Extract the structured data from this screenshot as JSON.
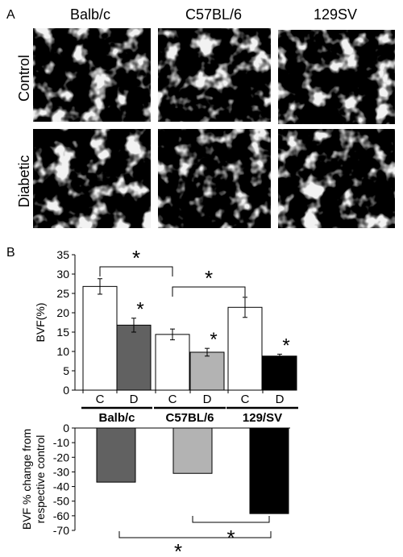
{
  "panel_a": {
    "label": "A",
    "strains": [
      "Balb/c",
      "C57BL/6",
      "129SV"
    ],
    "rows": [
      "Control",
      "Diabetic"
    ]
  },
  "panel_b": {
    "label": "B"
  },
  "chart_data": [
    {
      "type": "bar",
      "ylabel": "BVF(%)",
      "ylim": [
        0,
        35
      ],
      "yticks": [
        0,
        5,
        10,
        15,
        20,
        25,
        30,
        35
      ],
      "grid": false,
      "groups": [
        {
          "name": "Balb/c",
          "bars": [
            {
              "label": "C",
              "value": 26.8,
              "err": 2.0,
              "color": "#ffffff",
              "star": false
            },
            {
              "label": "D",
              "value": 16.8,
              "err": 1.8,
              "color": "#616161",
              "star": true
            }
          ]
        },
        {
          "name": "C57BL/6",
          "bars": [
            {
              "label": "C",
              "value": 14.4,
              "err": 1.4,
              "color": "#ffffff",
              "star": false
            },
            {
              "label": "D",
              "value": 9.8,
              "err": 1.0,
              "color": "#b3b3b3",
              "star": true
            }
          ]
        },
        {
          "name": "129/SV",
          "bars": [
            {
              "label": "C",
              "value": 21.4,
              "err": 2.6,
              "color": "#ffffff",
              "star": false
            },
            {
              "label": "D",
              "value": 8.8,
              "err": 0.5,
              "color": "#000000",
              "star": true
            }
          ]
        }
      ],
      "significance": [
        {
          "from": "Balb/c C",
          "to": "C57BL/6 C",
          "mark": "*"
        },
        {
          "from": "C57BL/6 C",
          "to": "129/SV C",
          "mark": "*"
        }
      ]
    },
    {
      "type": "bar",
      "ylabel": "BVF % change from respective control",
      "ylim": [
        -70,
        0
      ],
      "yticks": [
        0,
        -10,
        -20,
        -30,
        -40,
        -50,
        -60,
        -70
      ],
      "grid": false,
      "categories": [
        "Balb/c",
        "C57BL/6",
        "129/SV"
      ],
      "values": [
        -37,
        -31,
        -58.5
      ],
      "colors": [
        "#616161",
        "#b3b3b3",
        "#000000"
      ],
      "significance": [
        {
          "from": "C57BL/6",
          "to": "129/SV",
          "mark": "*"
        },
        {
          "from": "Balb/c",
          "to": "129/SV",
          "mark": "*"
        }
      ]
    }
  ]
}
